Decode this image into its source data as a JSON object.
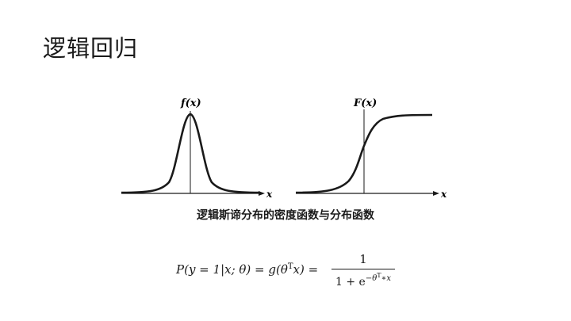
{
  "slide": {
    "title": "逻辑回归"
  },
  "figure": {
    "left_label": "f(x)",
    "right_label": "F(x)",
    "left_axis_label": "x",
    "right_axis_label": "x",
    "caption": "逻辑斯谛分布的密度函数与分布函数"
  },
  "formula": {
    "lhs": "P(y = 1|x; θ) = g(θ",
    "lhs_sup": "T",
    "lhs_tail": "x) =",
    "numerator": "1",
    "denominator_base": "1 + e",
    "denominator_exp_a": "−θ",
    "denominator_exp_sup": "T",
    "denominator_exp_b": "∗x"
  }
}
